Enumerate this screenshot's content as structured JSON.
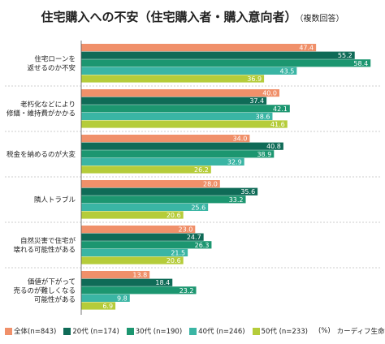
{
  "header": {
    "title": "住宅購入への不安（住宅購入者・購入意向者）",
    "subtitle": "（複数回答）"
  },
  "footer": {
    "unit": "(%)",
    "source": "カーディフ生命調べ"
  },
  "chart_data": {
    "type": "bar",
    "orientation": "horizontal",
    "xlim": [
      0,
      60
    ],
    "grid": false,
    "legend_position": "bottom",
    "categories": [
      [
        "住宅ローンを",
        "返せるのか不安"
      ],
      [
        "老朽化などにより",
        "修繕・維持費がかかる"
      ],
      [
        "税金を納めるのが大変"
      ],
      [
        "隣人トラブル"
      ],
      [
        "自然災害で住宅が",
        "壊れる可能性がある"
      ],
      [
        "価値が下がって",
        "売るのが難しくなる",
        "可能性がある"
      ]
    ],
    "series": [
      {
        "name": "全体(n=843)",
        "color": "#f0906a",
        "values": [
          47.4,
          40.0,
          34.0,
          28.0,
          23.0,
          13.8
        ]
      },
      {
        "name": "20代 (n=174)",
        "color": "#0f6b57",
        "values": [
          55.2,
          37.4,
          40.8,
          35.6,
          24.7,
          18.4
        ]
      },
      {
        "name": "30代 (n=190)",
        "color": "#1c9670",
        "values": [
          58.4,
          42.1,
          38.9,
          33.2,
          26.3,
          23.2
        ]
      },
      {
        "name": "40代 (n=246)",
        "color": "#3ab5a4",
        "values": [
          43.5,
          38.6,
          32.9,
          25.6,
          21.5,
          9.8
        ]
      },
      {
        "name": "50代 (n=233)",
        "color": "#b5cc3a",
        "values": [
          36.9,
          41.6,
          26.2,
          20.6,
          20.6,
          6.9
        ]
      }
    ]
  }
}
